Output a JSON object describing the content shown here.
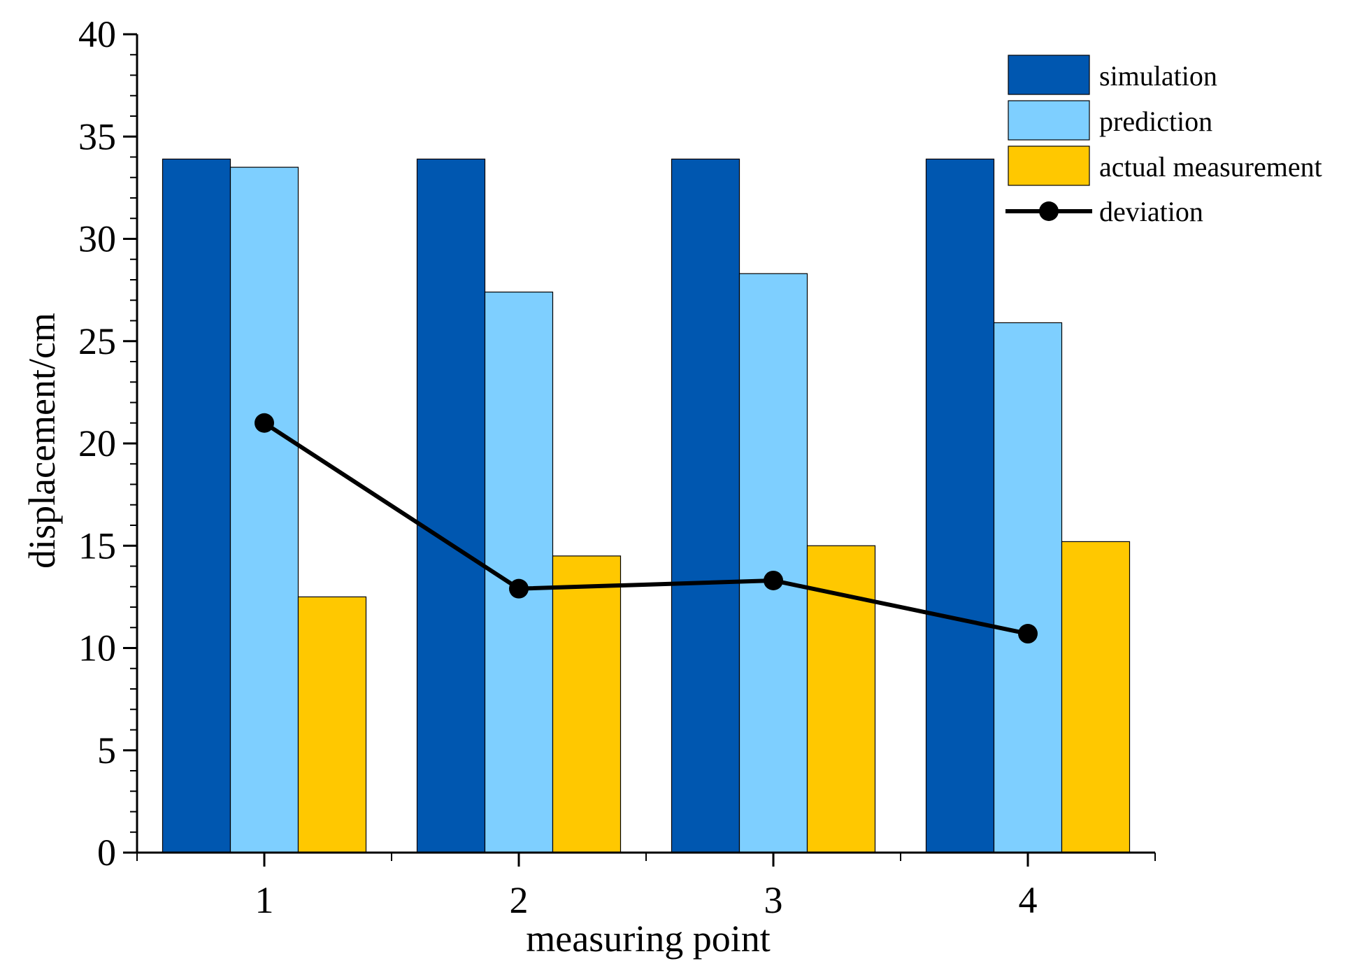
{
  "chart_data": {
    "type": "bar",
    "title": "",
    "xlabel": "measuring point",
    "ylabel": "displacement/cm",
    "categories": [
      "1",
      "2",
      "3",
      "4"
    ],
    "ylim": [
      0,
      40
    ],
    "yticks": [
      "0",
      "5",
      "10",
      "15",
      "20",
      "25",
      "30",
      "35",
      "40"
    ],
    "series": [
      {
        "name": "simulation",
        "kind": "bar",
        "color": "#0057b0",
        "values": [
          33.9,
          33.9,
          33.9,
          33.9
        ]
      },
      {
        "name": "prediction",
        "kind": "bar",
        "color": "#7ecfff",
        "values": [
          33.5,
          27.4,
          28.3,
          25.9
        ]
      },
      {
        "name": "actual measurement",
        "kind": "bar",
        "color": "#ffc800",
        "values": [
          12.5,
          14.5,
          15.0,
          15.2
        ]
      },
      {
        "name": "deviation",
        "kind": "line",
        "color": "#000000",
        "values": [
          21.0,
          12.9,
          13.3,
          10.7
        ]
      }
    ],
    "legend_position": "top-right"
  }
}
